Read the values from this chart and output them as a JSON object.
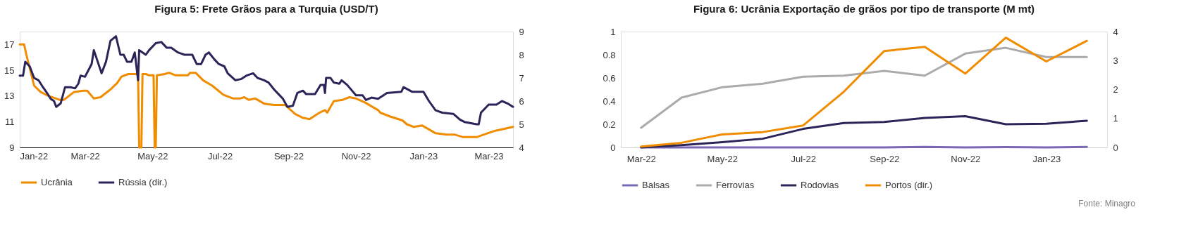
{
  "chart_data": [
    {
      "type": "line",
      "title": "Figura 5: Frete Grãos para a Turquia (USD/T)",
      "xlim": [
        "2022-01-01",
        "2023-03-23"
      ],
      "xticks": [
        {
          "value": "2022-01-01",
          "label": "Jan-22"
        },
        {
          "value": "2022-03-01",
          "label": "Mar-22"
        },
        {
          "value": "2022-05-01",
          "label": "May-22"
        },
        {
          "value": "2022-07-01",
          "label": "Jul-22"
        },
        {
          "value": "2022-09-01",
          "label": "Sep-22"
        },
        {
          "value": "2022-11-01",
          "label": "Nov-22"
        },
        {
          "value": "2023-01-01",
          "label": "Jan-23"
        },
        {
          "value": "2023-03-01",
          "label": "Mar-23"
        }
      ],
      "ylim": [
        9,
        18
      ],
      "yticks": [
        9,
        11,
        13,
        15,
        17
      ],
      "y2lim": [
        4,
        9
      ],
      "y2ticks": [
        4,
        5,
        6,
        7,
        8,
        9
      ],
      "legend": "bottom",
      "grid": false,
      "series": [
        {
          "name": "Ucrânia",
          "color": "#f08c00",
          "x": [
            "2022-01-01",
            "2022-01-05",
            "2022-01-07",
            "2022-01-14",
            "2022-01-20",
            "2022-01-27",
            "2022-02-06",
            "2022-02-10",
            "2022-02-19",
            "2022-02-27",
            "2022-03-03",
            "2022-03-09",
            "2022-03-15",
            "2022-03-24",
            "2022-03-30",
            "2022-04-03",
            "2022-04-09",
            "2022-04-18",
            "2022-04-19",
            "2022-04-21",
            "2022-04-22",
            "2022-04-25",
            "2022-04-28",
            "2022-05-02",
            "2022-05-03",
            "2022-05-04",
            "2022-05-05",
            "2022-05-12",
            "2022-05-16",
            "2022-05-22",
            "2022-06-02",
            "2022-06-04",
            "2022-06-09",
            "2022-06-16",
            "2022-06-24",
            "2022-07-04",
            "2022-07-13",
            "2022-07-19",
            "2022-07-23",
            "2022-07-27",
            "2022-08-02",
            "2022-08-10",
            "2022-08-19",
            "2022-08-29",
            "2022-09-07",
            "2022-09-14",
            "2022-09-20",
            "2022-09-29",
            "2022-10-04",
            "2022-10-06",
            "2022-10-12",
            "2022-10-20",
            "2022-10-26",
            "2022-11-01",
            "2022-11-09",
            "2022-11-21",
            "2022-11-23",
            "2022-12-02",
            "2022-12-13",
            "2022-12-17",
            "2022-12-23",
            "2022-12-31",
            "2023-01-06",
            "2023-01-12",
            "2023-01-22",
            "2023-01-29",
            "2023-02-06",
            "2023-02-18",
            "2023-02-28",
            "2023-03-07",
            "2023-03-13",
            "2023-03-23"
          ],
          "values": [
            17.0,
            17.0,
            16.2,
            13.8,
            13.3,
            13.0,
            12.7,
            12.7,
            13.3,
            13.4,
            13.4,
            12.8,
            12.9,
            13.5,
            14.0,
            14.5,
            14.7,
            14.7,
            9,
            9,
            14.7,
            14.7,
            14.6,
            14.6,
            9,
            9,
            14.6,
            14.7,
            14.8,
            14.6,
            14.6,
            14.8,
            14.8,
            14.2,
            13.8,
            13.1,
            12.8,
            12.8,
            12.9,
            12.7,
            12.8,
            12.4,
            12.3,
            12.3,
            11.6,
            11.3,
            11.2,
            11.7,
            11.9,
            11.7,
            12.6,
            12.7,
            12.9,
            12.8,
            12.5,
            11.9,
            11.7,
            11.4,
            11.1,
            10.8,
            10.6,
            10.7,
            10.4,
            10.1,
            10.0,
            10.0,
            9.8,
            9.8,
            10.1,
            10.3,
            10.4,
            10.6
          ]
        },
        {
          "name": "Rússia (dir.)",
          "color": "#2b2459",
          "axis": "y2",
          "x": [
            "2022-01-01",
            "2022-01-04",
            "2022-01-06",
            "2022-01-10",
            "2022-01-14",
            "2022-01-18",
            "2022-01-22",
            "2022-01-25",
            "2022-01-29",
            "2022-02-01",
            "2022-02-03",
            "2022-02-07",
            "2022-02-11",
            "2022-02-16",
            "2022-02-20",
            "2022-02-23",
            "2022-02-25",
            "2022-03-01",
            "2022-03-07",
            "2022-03-09",
            "2022-03-16",
            "2022-03-20",
            "2022-03-24",
            "2022-03-29",
            "2022-04-02",
            "2022-04-05",
            "2022-04-08",
            "2022-04-12",
            "2022-04-15",
            "2022-04-18",
            "2022-04-19",
            "2022-04-25",
            "2022-04-28",
            "2022-05-04",
            "2022-05-09",
            "2022-05-14",
            "2022-05-18",
            "2022-05-24",
            "2022-05-30",
            "2022-06-06",
            "2022-06-10",
            "2022-06-14",
            "2022-06-18",
            "2022-06-21",
            "2022-06-26",
            "2022-06-30",
            "2022-07-05",
            "2022-07-08",
            "2022-07-15",
            "2022-07-20",
            "2022-07-25",
            "2022-07-31",
            "2022-08-04",
            "2022-08-10",
            "2022-08-14",
            "2022-08-19",
            "2022-08-23",
            "2022-08-27",
            "2022-08-31",
            "2022-09-05",
            "2022-09-09",
            "2022-09-14",
            "2022-09-17",
            "2022-09-25",
            "2022-09-30",
            "2022-10-03",
            "2022-10-04",
            "2022-10-05",
            "2022-10-09",
            "2022-10-12",
            "2022-10-17",
            "2022-10-19",
            "2022-10-24",
            "2022-11-01",
            "2022-11-07",
            "2022-11-10",
            "2022-11-15",
            "2022-11-21",
            "2022-11-29",
            "2022-12-12",
            "2022-12-14",
            "2022-12-22",
            "2023-01-01",
            "2023-01-06",
            "2023-01-12",
            "2023-01-18",
            "2023-01-28",
            "2023-02-03",
            "2023-02-07",
            "2023-02-18",
            "2023-02-20",
            "2023-02-22",
            "2023-03-01",
            "2023-03-08",
            "2023-03-13",
            "2023-03-18",
            "2023-03-23"
          ],
          "values": [
            7.1,
            7.1,
            7.7,
            7.5,
            7.0,
            6.9,
            6.6,
            6.4,
            6.1,
            6.0,
            5.75,
            5.9,
            6.6,
            6.6,
            6.55,
            6.75,
            7.1,
            7.05,
            7.6,
            8.2,
            7.2,
            7.7,
            8.6,
            8.8,
            8.0,
            8.0,
            7.7,
            7.7,
            8.1,
            6.9,
            8.2,
            8.0,
            8.2,
            8.5,
            8.55,
            8.3,
            8.3,
            8.1,
            8.0,
            8.0,
            7.6,
            7.6,
            8.0,
            8.1,
            7.8,
            7.6,
            7.5,
            7.2,
            6.9,
            6.95,
            7.1,
            7.2,
            7.0,
            6.9,
            6.8,
            6.5,
            6.3,
            6.1,
            5.75,
            5.8,
            6.35,
            6.45,
            6.3,
            6.3,
            6.7,
            6.7,
            6.35,
            7.0,
            7.0,
            6.8,
            6.75,
            6.9,
            6.7,
            6.25,
            6.25,
            6.05,
            6.15,
            6.1,
            6.35,
            6.4,
            6.6,
            6.4,
            6.4,
            6.0,
            5.6,
            5.5,
            5.45,
            5.2,
            5.1,
            5.0,
            5.0,
            5.5,
            5.85,
            5.85,
            6.0,
            5.9,
            5.75
          ]
        }
      ]
    },
    {
      "type": "line",
      "title": "Figura 6: Ucrânia Exportação de grãos por tipo de transporte (M mt)",
      "categories": [
        "Mar-22",
        null,
        "May-22",
        null,
        "Jul-22",
        null,
        "Sep-22",
        null,
        "Nov-22",
        null,
        "Jan-23",
        null
      ],
      "ylim": [
        0,
        1
      ],
      "yticks": [
        0,
        0.2,
        0.4,
        0.6,
        0.8,
        1
      ],
      "y2lim": [
        0,
        4
      ],
      "y2ticks": [
        0,
        1,
        2,
        3,
        4
      ],
      "legend": "bottom",
      "grid": false,
      "annotations": [
        "Fonte: Minagro"
      ],
      "series": [
        {
          "name": "Balsas",
          "color": "#7b68b5",
          "values": [
            0,
            0,
            0,
            0,
            0,
            0,
            0,
            0.005,
            0,
            0.003,
            0,
            0.005
          ]
        },
        {
          "name": "Ferrovias",
          "color": "#ababab",
          "values": [
            0.17,
            0.43,
            0.52,
            0.55,
            0.61,
            0.62,
            0.66,
            0.62,
            0.81,
            0.86,
            0.78,
            0.78
          ]
        },
        {
          "name": "Rodovias",
          "color": "#2b2459",
          "values": [
            0.0,
            0.02,
            0.045,
            0.075,
            0.16,
            0.21,
            0.22,
            0.255,
            0.27,
            0.2,
            0.205,
            0.23
          ]
        },
        {
          "name": "Portos (dir.)",
          "color": "#f08c00",
          "axis": "y2",
          "values": [
            0.03,
            0.16,
            0.45,
            0.53,
            0.76,
            1.92,
            3.33,
            3.47,
            2.55,
            3.79,
            2.97,
            3.68
          ]
        }
      ]
    }
  ]
}
